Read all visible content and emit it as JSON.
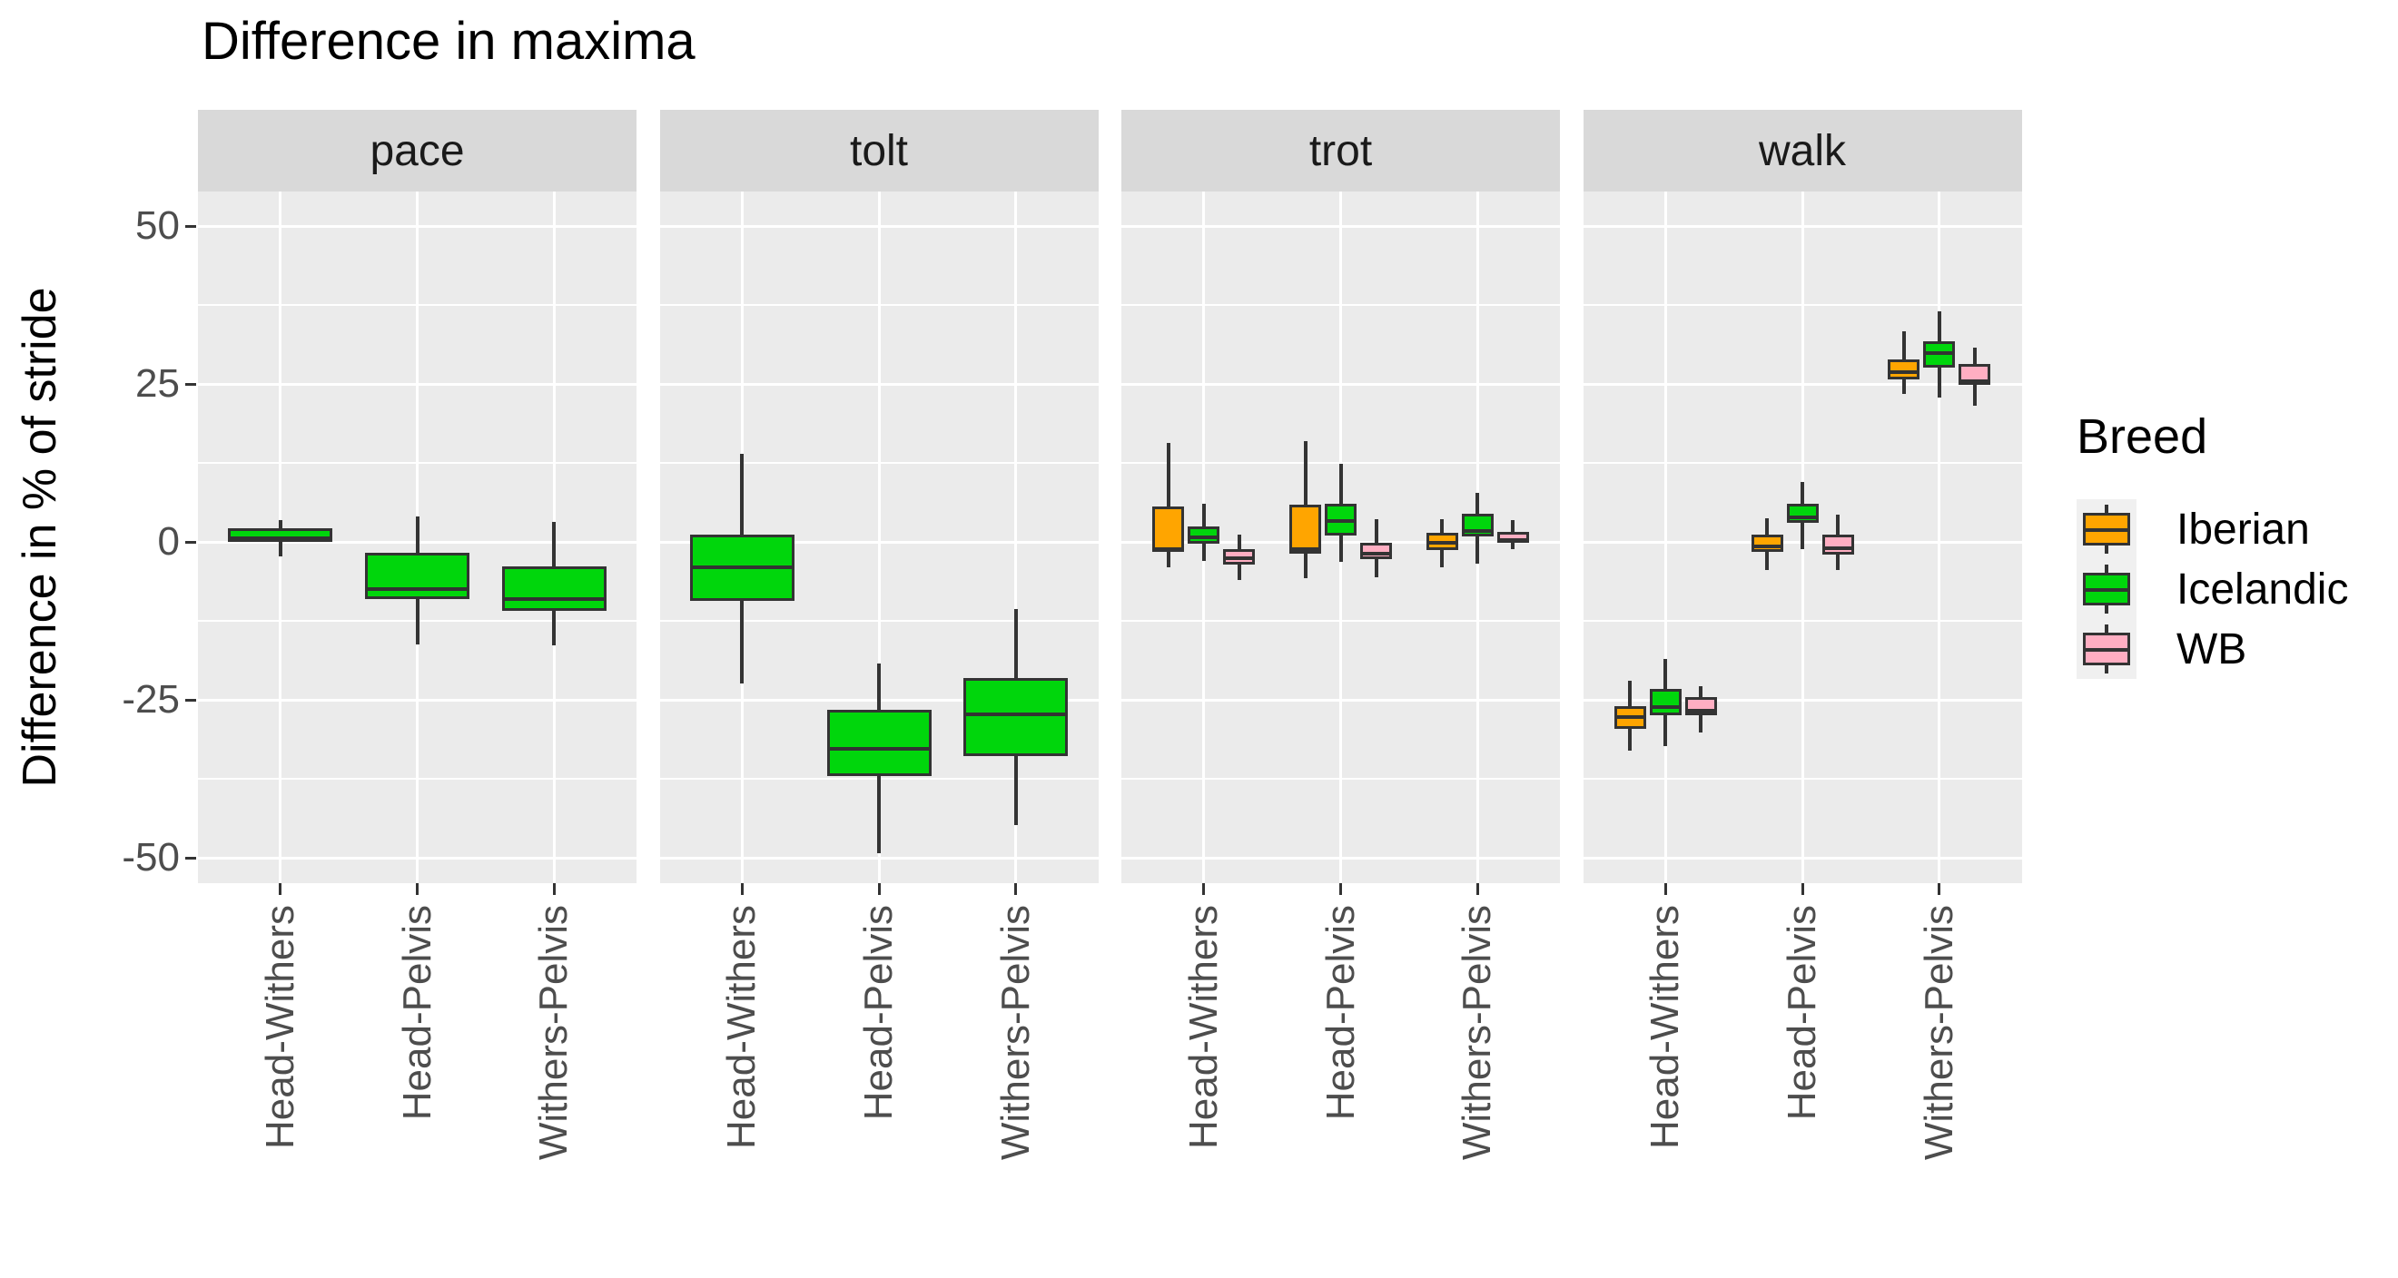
{
  "chart_data": {
    "type": "boxplot",
    "title": "Difference in maxima",
    "ylabel": "Difference in % of stride",
    "xlabel": "",
    "grid": true,
    "y_ticks": [
      50,
      25,
      0,
      -25,
      -50
    ],
    "y_minor_ticks": [
      37.5,
      12.5,
      -12.5,
      -37.5
    ],
    "ylim": [
      -54,
      55.5
    ],
    "categories": [
      "Head-Withers",
      "Head-Pelvis",
      "Withers-Pelvis"
    ],
    "legend": {
      "title": "Breed",
      "position": "right",
      "entries": [
        {
          "label": "Iberian",
          "color": "#FFA500"
        },
        {
          "label": "Icelandic",
          "color": "#00D60C"
        },
        {
          "label": "WB",
          "color": "#FFAEC2"
        }
      ]
    },
    "facets": [
      {
        "label": "pace",
        "groups": [
          {
            "category": "Head-Withers",
            "boxes": [
              {
                "breed": "Icelandic",
                "low": -2.3,
                "q1": 0.0,
                "median": 1.0,
                "q3": 2.2,
                "high": 3.4
              }
            ]
          },
          {
            "category": "Head-Pelvis",
            "boxes": [
              {
                "breed": "Icelandic",
                "low": -16.3,
                "q1": -9.1,
                "median": -7.0,
                "q3": -1.7,
                "high": 4.0
              }
            ]
          },
          {
            "category": "Withers-Pelvis",
            "boxes": [
              {
                "breed": "Icelandic",
                "low": -16.4,
                "q1": -10.9,
                "median": -8.6,
                "q3": -3.9,
                "high": 3.2
              }
            ]
          }
        ]
      },
      {
        "label": "tolt",
        "groups": [
          {
            "category": "Head-Withers",
            "boxes": [
              {
                "breed": "Icelandic",
                "low": -22.4,
                "q1": -9.3,
                "median": -3.6,
                "q3": 1.1,
                "high": 14.0
              }
            ]
          },
          {
            "category": "Head-Pelvis",
            "boxes": [
              {
                "breed": "Icelandic",
                "low": -49.3,
                "q1": -37.1,
                "median": -32.3,
                "q3": -26.6,
                "high": -19.2
              }
            ]
          },
          {
            "category": "Withers-Pelvis",
            "boxes": [
              {
                "breed": "Icelandic",
                "low": -44.8,
                "q1": -33.9,
                "median": -26.8,
                "q3": -21.6,
                "high": -10.7
              }
            ]
          }
        ]
      },
      {
        "label": "trot",
        "groups": [
          {
            "category": "Head-Withers",
            "boxes": [
              {
                "breed": "Iberian",
                "low": -4.0,
                "q1": -1.6,
                "median": -0.7,
                "q3": 5.6,
                "high": 15.7
              },
              {
                "breed": "Icelandic",
                "low": -3.0,
                "q1": -0.3,
                "median": 1.1,
                "q3": 2.5,
                "high": 6.0
              },
              {
                "breed": "WB",
                "low": -6.0,
                "q1": -3.6,
                "median": -2.2,
                "q3": -1.1,
                "high": 1.1
              }
            ]
          },
          {
            "category": "Head-Pelvis",
            "boxes": [
              {
                "breed": "Iberian",
                "low": -5.8,
                "q1": -1.8,
                "median": -0.7,
                "q3": 5.9,
                "high": 16.0
              },
              {
                "breed": "Icelandic",
                "low": -3.2,
                "q1": 1.0,
                "median": 3.7,
                "q3": 6.0,
                "high": 12.4
              },
              {
                "breed": "WB",
                "low": -5.6,
                "q1": -2.7,
                "median": -1.5,
                "q3": -0.1,
                "high": 3.6
              }
            ]
          },
          {
            "category": "Withers-Pelvis",
            "boxes": [
              {
                "breed": "Iberian",
                "low": -4.0,
                "q1": -1.3,
                "median": 0.3,
                "q3": 1.4,
                "high": 3.6
              },
              {
                "breed": "Icelandic",
                "low": -3.4,
                "q1": 0.8,
                "median": 2.1,
                "q3": 4.5,
                "high": 7.7
              },
              {
                "breed": "WB",
                "low": -1.1,
                "q1": -0.1,
                "median": 0.7,
                "q3": 1.6,
                "high": 3.4
              }
            ]
          }
        ]
      },
      {
        "label": "walk",
        "groups": [
          {
            "category": "Head-Withers",
            "boxes": [
              {
                "breed": "Iberian",
                "low": -33.1,
                "q1": -29.6,
                "median": -27.3,
                "q3": -26.0,
                "high": -22.0
              },
              {
                "breed": "Icelandic",
                "low": -32.3,
                "q1": -27.4,
                "median": -25.7,
                "q3": -23.3,
                "high": -18.5
              },
              {
                "breed": "WB",
                "low": -30.2,
                "q1": -27.5,
                "median": -26.3,
                "q3": -24.6,
                "high": -22.8
              }
            ]
          },
          {
            "category": "Head-Pelvis",
            "boxes": [
              {
                "breed": "Iberian",
                "low": -4.4,
                "q1": -1.6,
                "median": -0.3,
                "q3": 1.1,
                "high": 3.8
              },
              {
                "breed": "Icelandic",
                "low": -1.1,
                "q1": 3.0,
                "median": 4.3,
                "q3": 6.0,
                "high": 9.5
              },
              {
                "breed": "WB",
                "low": -4.4,
                "q1": -2.0,
                "median": -0.6,
                "q3": 1.1,
                "high": 4.3
              }
            ]
          },
          {
            "category": "Withers-Pelvis",
            "boxes": [
              {
                "breed": "Iberian",
                "low": 23.4,
                "q1": 25.7,
                "median": 27.3,
                "q3": 28.9,
                "high": 33.3
              },
              {
                "breed": "Icelandic",
                "low": 22.9,
                "q1": 27.6,
                "median": 30.3,
                "q3": 31.7,
                "high": 36.5
              },
              {
                "breed": "WB",
                "low": 21.5,
                "q1": 24.8,
                "median": 25.8,
                "q3": 28.1,
                "high": 30.7
              }
            ]
          }
        ]
      }
    ],
    "colors": {
      "panel_background": "#EBEBEB",
      "strip_background": "#D9D9D9",
      "gridline": "#FFFFFF",
      "box_border": "#333333",
      "tick_text": "#4D4D4D",
      "title_text": "#000000"
    }
  }
}
